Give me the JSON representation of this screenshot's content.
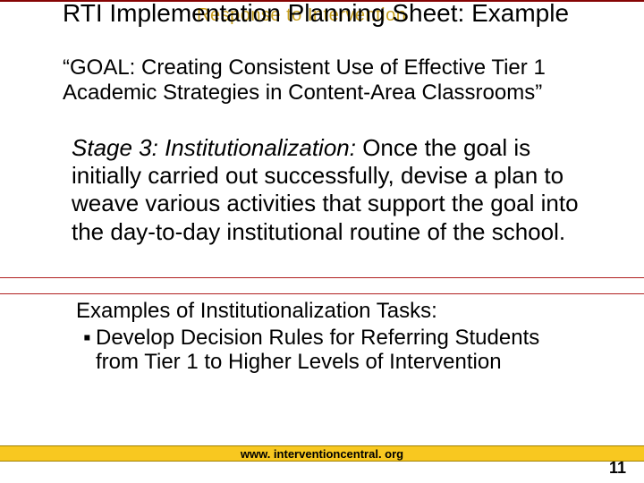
{
  "watermark": "Response to Intervention",
  "title": "RTI Implementation Planning Sheet: Example",
  "goal": "“GOAL: Creating Consistent Use of Effective Tier 1 Academic Strategies in Content-Area Classrooms”",
  "stage_label": "Stage 3: Institutionalization:",
  "stage_body": " Once the goal is initially carried out successfully, devise a plan to weave various activities that support the goal into the day-to-day institutional routine of the school.",
  "examples_heading": "Examples of Institutionalization Tasks:",
  "examples_bullet": "Develop Decision Rules for Referring Students from Tier 1 to Higher Levels of Intervention",
  "footer_url": "www. interventioncentral. org",
  "page_number": "11",
  "colors": {
    "header_line": "#860404",
    "watermark": "#c8a020",
    "divider": "#b02020",
    "footer_bg": "#f8c820",
    "footer_border": "#a08000",
    "text": "#000000",
    "bg": "#ffffff"
  },
  "fontsizes": {
    "title": 28,
    "goal": 24,
    "stage": 26,
    "examples": 24,
    "footer": 13,
    "pagenum": 18,
    "watermark": 20
  }
}
